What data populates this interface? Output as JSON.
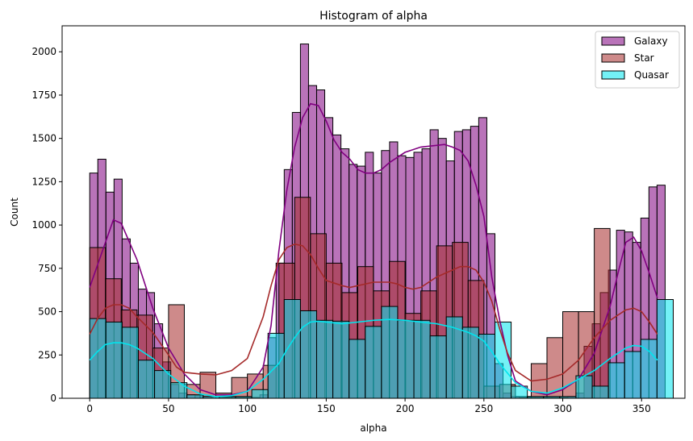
{
  "chart_data": {
    "type": "bar",
    "title": "Histogram of alpha",
    "xlabel": "alpha",
    "ylabel": "Count",
    "xlim": [
      -17.5,
      377.5
    ],
    "ylim": [
      0,
      2150
    ],
    "xticks": [
      0,
      50,
      100,
      150,
      200,
      250,
      300,
      350
    ],
    "yticks": [
      0,
      250,
      500,
      750,
      1000,
      1250,
      1500,
      1750,
      2000
    ],
    "grid": false,
    "legend_position": "top-right",
    "series": [
      {
        "name": "Galaxy",
        "color": "#800080",
        "bin_width": 5.14,
        "x_start": 0,
        "counts": [
          1300,
          1380,
          1190,
          1265,
          920,
          780,
          630,
          610,
          430,
          210,
          80,
          30,
          20,
          15,
          10,
          10,
          5,
          5,
          5,
          5,
          5,
          20,
          350,
          780,
          1320,
          1650,
          2045,
          1805,
          1780,
          1620,
          1520,
          1440,
          1350,
          1340,
          1420,
          1300,
          1430,
          1480,
          1400,
          1390,
          1420,
          1440,
          1550,
          1500,
          1370,
          1540,
          1550,
          1570,
          1620,
          950,
          200,
          30,
          10,
          5,
          5,
          5,
          5,
          5,
          5,
          10,
          30,
          300,
          430,
          610,
          740,
          970,
          960,
          900,
          1040,
          1220,
          1230
        ],
        "kde": [
          [
            0,
            640
          ],
          [
            10,
            900
          ],
          [
            15,
            1030
          ],
          [
            20,
            1010
          ],
          [
            30,
            800
          ],
          [
            40,
            520
          ],
          [
            50,
            290
          ],
          [
            60,
            140
          ],
          [
            70,
            50
          ],
          [
            80,
            20
          ],
          [
            90,
            20
          ],
          [
            100,
            40
          ],
          [
            110,
            180
          ],
          [
            115,
            420
          ],
          [
            120,
            850
          ],
          [
            125,
            1200
          ],
          [
            130,
            1450
          ],
          [
            135,
            1620
          ],
          [
            140,
            1700
          ],
          [
            145,
            1690
          ],
          [
            150,
            1600
          ],
          [
            155,
            1490
          ],
          [
            160,
            1420
          ],
          [
            165,
            1380
          ],
          [
            170,
            1320
          ],
          [
            175,
            1300
          ],
          [
            180,
            1300
          ],
          [
            185,
            1320
          ],
          [
            190,
            1360
          ],
          [
            200,
            1420
          ],
          [
            210,
            1450
          ],
          [
            220,
            1460
          ],
          [
            225,
            1465
          ],
          [
            230,
            1450
          ],
          [
            235,
            1430
          ],
          [
            240,
            1370
          ],
          [
            245,
            1230
          ],
          [
            250,
            1050
          ],
          [
            255,
            700
          ],
          [
            260,
            450
          ],
          [
            265,
            250
          ],
          [
            270,
            100
          ],
          [
            280,
            40
          ],
          [
            290,
            20
          ],
          [
            300,
            50
          ],
          [
            310,
            110
          ],
          [
            320,
            260
          ],
          [
            330,
            530
          ],
          [
            335,
            720
          ],
          [
            340,
            900
          ],
          [
            345,
            930
          ],
          [
            350,
            850
          ],
          [
            355,
            720
          ],
          [
            360,
            580
          ]
        ]
      },
      {
        "name": "Star",
        "color": "#a52a2a",
        "bin_width": 10,
        "x_start": 0,
        "counts": [
          870,
          690,
          510,
          480,
          290,
          540,
          80,
          150,
          30,
          120,
          140,
          190,
          780,
          1160,
          950,
          780,
          610,
          760,
          620,
          790,
          490,
          620,
          880,
          900,
          680,
          70,
          80,
          10,
          200,
          350,
          500,
          500,
          980
        ],
        "kde": [
          [
            0,
            370
          ],
          [
            5,
            460
          ],
          [
            10,
            520
          ],
          [
            15,
            540
          ],
          [
            20,
            540
          ],
          [
            25,
            520
          ],
          [
            30,
            470
          ],
          [
            40,
            380
          ],
          [
            50,
            250
          ],
          [
            55,
            180
          ],
          [
            60,
            150
          ],
          [
            70,
            140
          ],
          [
            80,
            135
          ],
          [
            90,
            160
          ],
          [
            100,
            230
          ],
          [
            110,
            470
          ],
          [
            115,
            650
          ],
          [
            120,
            800
          ],
          [
            125,
            870
          ],
          [
            130,
            890
          ],
          [
            135,
            880
          ],
          [
            140,
            830
          ],
          [
            145,
            750
          ],
          [
            150,
            680
          ],
          [
            160,
            650
          ],
          [
            165,
            640
          ],
          [
            170,
            650
          ],
          [
            180,
            670
          ],
          [
            185,
            670
          ],
          [
            190,
            670
          ],
          [
            195,
            660
          ],
          [
            200,
            640
          ],
          [
            205,
            630
          ],
          [
            210,
            640
          ],
          [
            220,
            700
          ],
          [
            230,
            740
          ],
          [
            235,
            760
          ],
          [
            240,
            760
          ],
          [
            245,
            740
          ],
          [
            250,
            670
          ],
          [
            255,
            560
          ],
          [
            260,
            400
          ],
          [
            265,
            260
          ],
          [
            270,
            160
          ],
          [
            280,
            100
          ],
          [
            290,
            110
          ],
          [
            300,
            140
          ],
          [
            310,
            220
          ],
          [
            320,
            350
          ],
          [
            330,
            450
          ],
          [
            340,
            510
          ],
          [
            345,
            520
          ],
          [
            350,
            500
          ],
          [
            355,
            440
          ],
          [
            360,
            370
          ]
        ]
      },
      {
        "name": "Quasar",
        "color": "#00e5ee",
        "bin_width": 10.28,
        "x_start": 0,
        "counts": [
          460,
          440,
          410,
          220,
          160,
          90,
          20,
          10,
          10,
          10,
          50,
          375,
          570,
          505,
          450,
          445,
          340,
          415,
          530,
          450,
          450,
          360,
          470,
          410,
          370,
          440,
          70,
          10,
          10,
          10,
          130,
          70,
          205,
          270,
          340,
          570
        ],
        "kde": [
          [
            0,
            220
          ],
          [
            5,
            270
          ],
          [
            10,
            310
          ],
          [
            15,
            320
          ],
          [
            20,
            320
          ],
          [
            25,
            310
          ],
          [
            30,
            290
          ],
          [
            40,
            230
          ],
          [
            50,
            140
          ],
          [
            60,
            70
          ],
          [
            70,
            25
          ],
          [
            80,
            10
          ],
          [
            90,
            15
          ],
          [
            100,
            40
          ],
          [
            110,
            110
          ],
          [
            120,
            200
          ],
          [
            125,
            280
          ],
          [
            130,
            350
          ],
          [
            135,
            410
          ],
          [
            140,
            440
          ],
          [
            145,
            445
          ],
          [
            150,
            440
          ],
          [
            160,
            430
          ],
          [
            170,
            440
          ],
          [
            180,
            450
          ],
          [
            190,
            455
          ],
          [
            200,
            450
          ],
          [
            210,
            440
          ],
          [
            220,
            430
          ],
          [
            230,
            410
          ],
          [
            240,
            380
          ],
          [
            245,
            360
          ],
          [
            250,
            330
          ],
          [
            255,
            270
          ],
          [
            260,
            200
          ],
          [
            270,
            90
          ],
          [
            280,
            40
          ],
          [
            290,
            30
          ],
          [
            300,
            60
          ],
          [
            310,
            110
          ],
          [
            320,
            160
          ],
          [
            330,
            230
          ],
          [
            340,
            290
          ],
          [
            345,
            305
          ],
          [
            350,
            300
          ],
          [
            355,
            270
          ],
          [
            360,
            220
          ]
        ]
      }
    ]
  }
}
